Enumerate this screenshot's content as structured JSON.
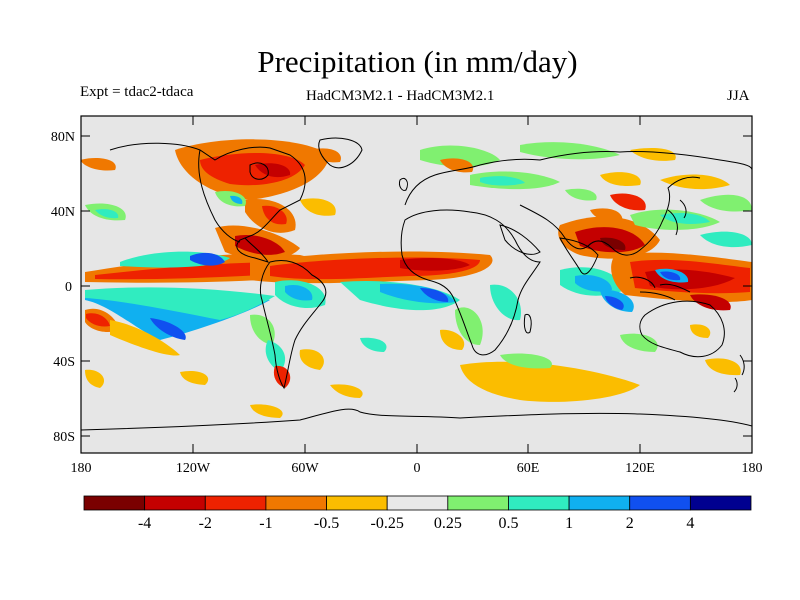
{
  "header": {
    "title": "Precipitation (in mm/day)",
    "left_label": "Expt = tdac2-tdaca",
    "center_label": "HadCM3M2.1 - HadCM3M2.1",
    "right_label": "JJA"
  },
  "axes": {
    "lat_ticks": [
      "80N",
      "40N",
      "0",
      "40S",
      "80S"
    ],
    "lon_ticks": [
      "180",
      "120W",
      "60W",
      "0",
      "60E",
      "120E",
      "180"
    ]
  },
  "colorbar": {
    "colors": [
      "#7a0000",
      "#c40000",
      "#ee2200",
      "#f07800",
      "#fbbd00",
      "#e8e8e8",
      "#80f070",
      "#30ecc0",
      "#10b0f0",
      "#1050f0",
      "#000090"
    ],
    "labels": [
      "-4",
      "-2",
      "-1",
      "-0.5",
      "-0.25",
      "0.25",
      "0.5",
      "1",
      "2",
      "4"
    ]
  }
}
